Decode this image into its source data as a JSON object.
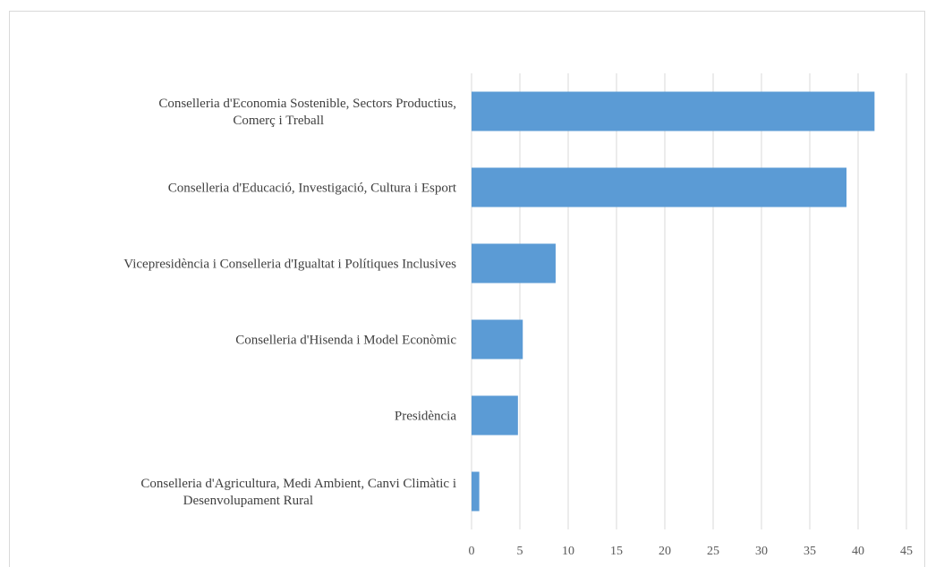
{
  "chart_data": {
    "type": "bar",
    "orientation": "horizontal",
    "categories": [
      [
        "Conselleria d'Economia Sostenible, Sectors Productius,",
        "Comerç i Treball"
      ],
      [
        "Conselleria d'Educació, Investigació, Cultura i Esport"
      ],
      [
        "Vicepresidència i Conselleria d'Igualtat i Polítiques Inclusives"
      ],
      [
        "Conselleria d'Hisenda i Model Econòmic"
      ],
      [
        "Presidència"
      ],
      [
        "Conselleria d'Agricultura, Medi Ambient, Canvi Climàtic i",
        "Desenvolupament Rural"
      ]
    ],
    "values": [
      41.7,
      38.8,
      8.7,
      5.3,
      4.8,
      0.8
    ],
    "xlim": [
      0,
      45
    ],
    "xticks": [
      0,
      5,
      10,
      15,
      20,
      25,
      30,
      35,
      40,
      45
    ],
    "grid": true,
    "bar_color": "#5b9bd5",
    "title": "",
    "xlabel": "",
    "ylabel": ""
  }
}
